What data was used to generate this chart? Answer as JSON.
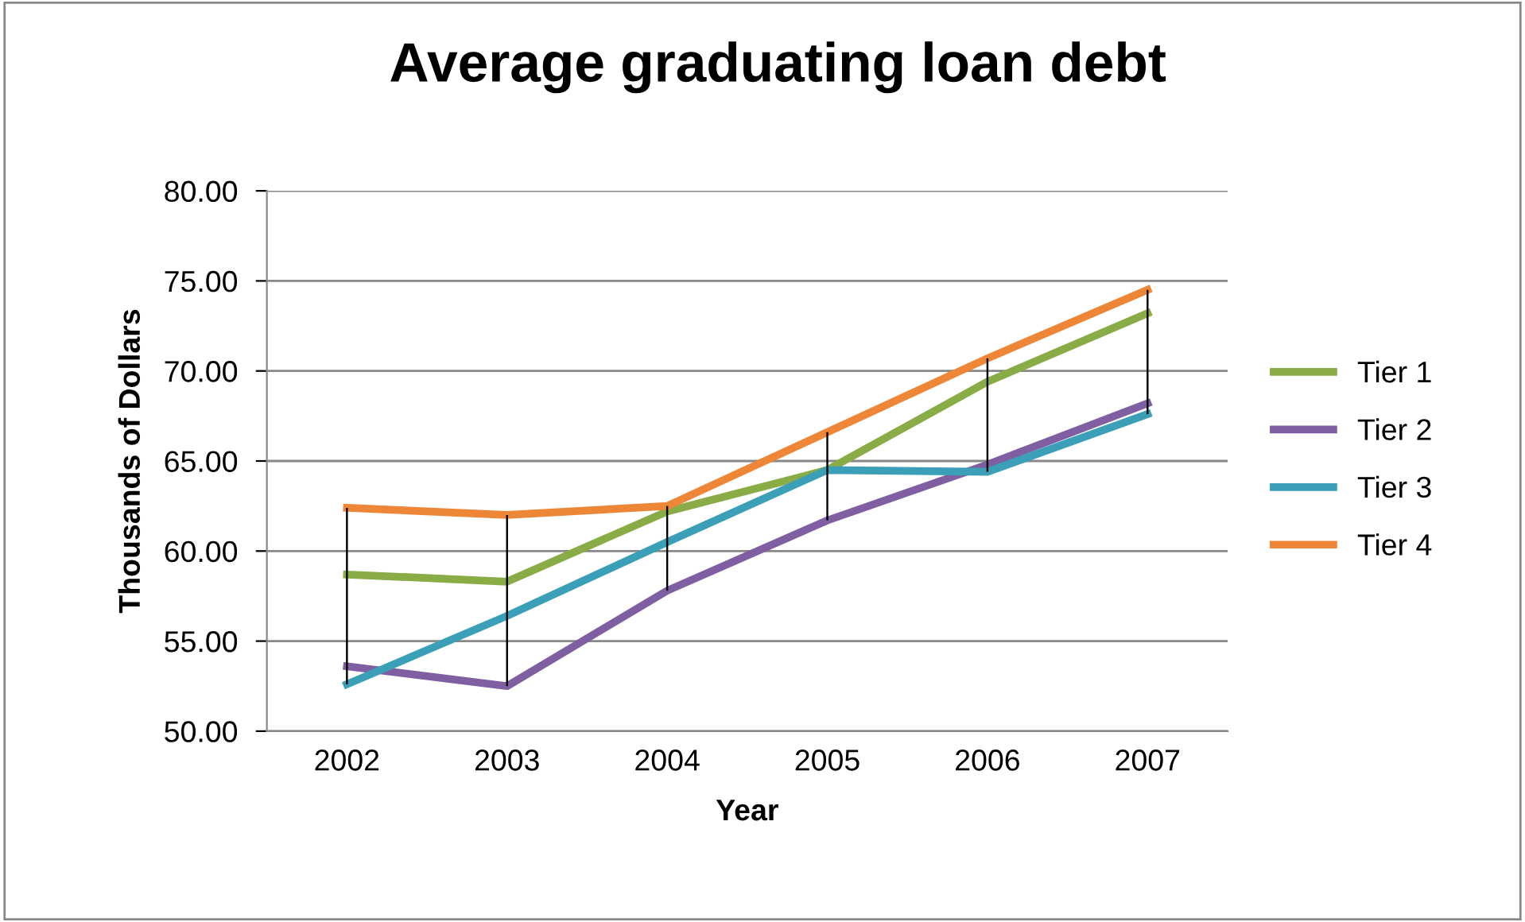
{
  "chart_data": {
    "type": "line",
    "title": "Average graduating loan debt",
    "xlabel": "Year",
    "ylabel": "Thousands of Dollars",
    "categories": [
      "2002",
      "2003",
      "2004",
      "2005",
      "2006",
      "2007"
    ],
    "series": [
      {
        "type": "bar",
        "color": "#000000",
        "base": [
          52.6,
          52.5,
          57.8,
          61.7,
          64.4,
          67.6
        ],
        "values": [
          9.8,
          9.5,
          4.7,
          4.9,
          6.3,
          6.9
        ]
      },
      {
        "name": "Tier 1",
        "color": "#8aac46",
        "values": [
          58.7,
          58.3,
          62.2,
          64.5,
          69.4,
          73.2
        ]
      },
      {
        "name": "Tier 2",
        "color": "#7f5fa1",
        "values": [
          53.6,
          52.5,
          57.8,
          61.7,
          64.8,
          68.2
        ]
      },
      {
        "name": "Tier 3",
        "color": "#3c9fb8",
        "values": [
          52.6,
          56.4,
          60.5,
          64.5,
          64.4,
          67.6
        ]
      },
      {
        "name": "Tier 4",
        "color": "#ee8638",
        "values": [
          62.4,
          62.0,
          62.5,
          66.6,
          70.7,
          74.5
        ]
      }
    ],
    "ylim": [
      50,
      80
    ],
    "yticks": [
      {
        "value": 50,
        "label": "50.00"
      },
      {
        "value": 55,
        "label": "55.00"
      },
      {
        "value": 60,
        "label": "60.00"
      },
      {
        "value": 65,
        "label": "65.00"
      },
      {
        "value": 70,
        "label": "70.00"
      },
      {
        "value": 75,
        "label": "75.00"
      },
      {
        "value": 80,
        "label": "80.00"
      }
    ],
    "grid": "y",
    "legend": "right",
    "marker": "none",
    "line_style": "solid"
  }
}
